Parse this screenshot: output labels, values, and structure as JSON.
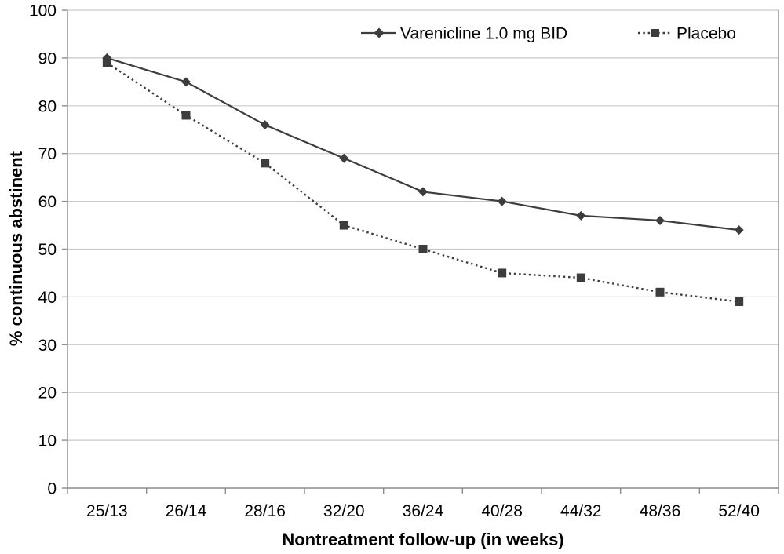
{
  "chart_data": {
    "type": "line",
    "title": "",
    "xlabel": "Nontreatment follow-up (in weeks)",
    "ylabel": "% continuous abstinent",
    "categories": [
      "25/13",
      "26/14",
      "28/16",
      "32/20",
      "36/24",
      "40/28",
      "44/32",
      "48/36",
      "52/40"
    ],
    "series": [
      {
        "name": "Varenicline 1.0 mg BID",
        "values": [
          90,
          85,
          76,
          69,
          62,
          60,
          57,
          56,
          54
        ],
        "line_style": "solid",
        "marker": "diamond"
      },
      {
        "name": "Placebo",
        "values": [
          89,
          78,
          68,
          55,
          50,
          45,
          44,
          41,
          39
        ],
        "line_style": "dotted",
        "marker": "square"
      }
    ],
    "ylim": [
      0,
      100
    ],
    "yticks": [
      0,
      10,
      20,
      30,
      40,
      50,
      60,
      70,
      80,
      90,
      100
    ],
    "grid": "horizontal",
    "legend_position": "top-inside",
    "colors": {
      "series": "#3d3d3d",
      "gridline": "#c9c9c9",
      "axis": "#8c8c8c",
      "text": "#000000",
      "background": "#ffffff"
    }
  }
}
